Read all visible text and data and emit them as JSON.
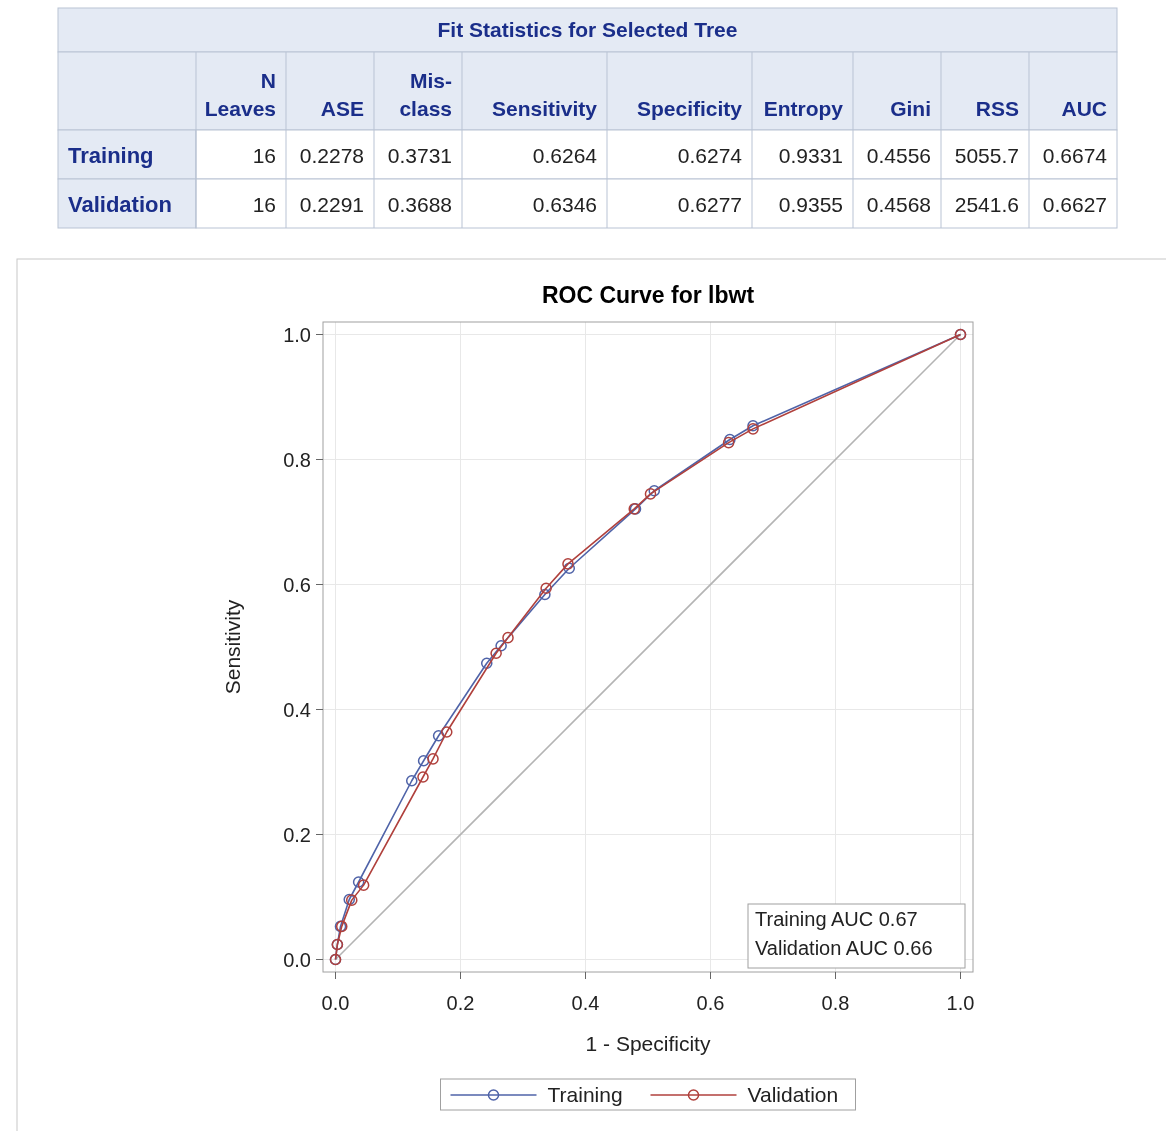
{
  "chart_data": [
    {
      "type": "other",
      "title": "Fit Statistics for Selected Tree",
      "categories": [
        "N Leaves",
        "ASE",
        "Mis-class",
        "Sensitivity",
        "Specificity",
        "Entropy",
        "Gini",
        "RSS",
        "AUC"
      ],
      "y_categories": [
        "Training",
        "Validation"
      ],
      "cell_labels": [
        [
          "16",
          "0.2278",
          "0.3731",
          "0.6264",
          "0.6274",
          "0.9331",
          "0.4556",
          "5055.7",
          "0.6674"
        ],
        [
          "16",
          "0.2291",
          "0.3688",
          "0.6346",
          "0.6277",
          "0.9355",
          "0.4568",
          "2541.6",
          "0.6627"
        ]
      ]
    },
    {
      "type": "line",
      "title": "ROC Curve for lbwt",
      "xlabel": "1 - Specificity",
      "ylabel": "Sensitivity",
      "xlim": [
        -0.02,
        1.02
      ],
      "ylim": [
        -0.02,
        1.02
      ],
      "xticks": [
        {
          "value": 0,
          "label": "0.0"
        },
        0.2,
        0.4,
        0.6,
        0.8,
        {
          "value": 1,
          "label": "1.0"
        }
      ],
      "yticks": [
        {
          "value": 0,
          "label": "0.0"
        },
        0.2,
        0.4,
        0.6,
        0.8,
        {
          "value": 1,
          "label": "1.0"
        }
      ],
      "grid": true,
      "legend": "bottom",
      "marker": "circle",
      "annotations": [
        "Training AUC 0.67",
        "Validation AUC 0.66"
      ],
      "series": [
        {
          "type": "line",
          "color": "#b4b4b4",
          "marker": "none",
          "x": [
            0,
            1
          ],
          "values": [
            0,
            1
          ]
        },
        {
          "name": "Training",
          "color": "#4f63a8",
          "x": [
            0,
            0.003,
            0.008,
            0.022,
            0.037,
            0.122,
            0.141,
            0.165,
            0.242,
            0.265,
            0.335,
            0.374,
            0.48,
            0.51,
            0.631,
            0.668,
            1
          ],
          "values": [
            0,
            0.024,
            0.053,
            0.096,
            0.124,
            0.286,
            0.318,
            0.358,
            0.474,
            0.502,
            0.584,
            0.626,
            0.721,
            0.75,
            0.832,
            0.854,
            1
          ]
        },
        {
          "name": "Validation",
          "color": "#b0403c",
          "x": [
            0,
            0.003,
            0.01,
            0.026,
            0.045,
            0.14,
            0.156,
            0.178,
            0.257,
            0.276,
            0.337,
            0.372,
            0.478,
            0.504,
            0.629,
            0.668,
            1
          ],
          "values": [
            0,
            0.024,
            0.053,
            0.095,
            0.119,
            0.292,
            0.321,
            0.364,
            0.49,
            0.515,
            0.594,
            0.633,
            0.721,
            0.745,
            0.827,
            0.849,
            1
          ]
        }
      ]
    }
  ]
}
